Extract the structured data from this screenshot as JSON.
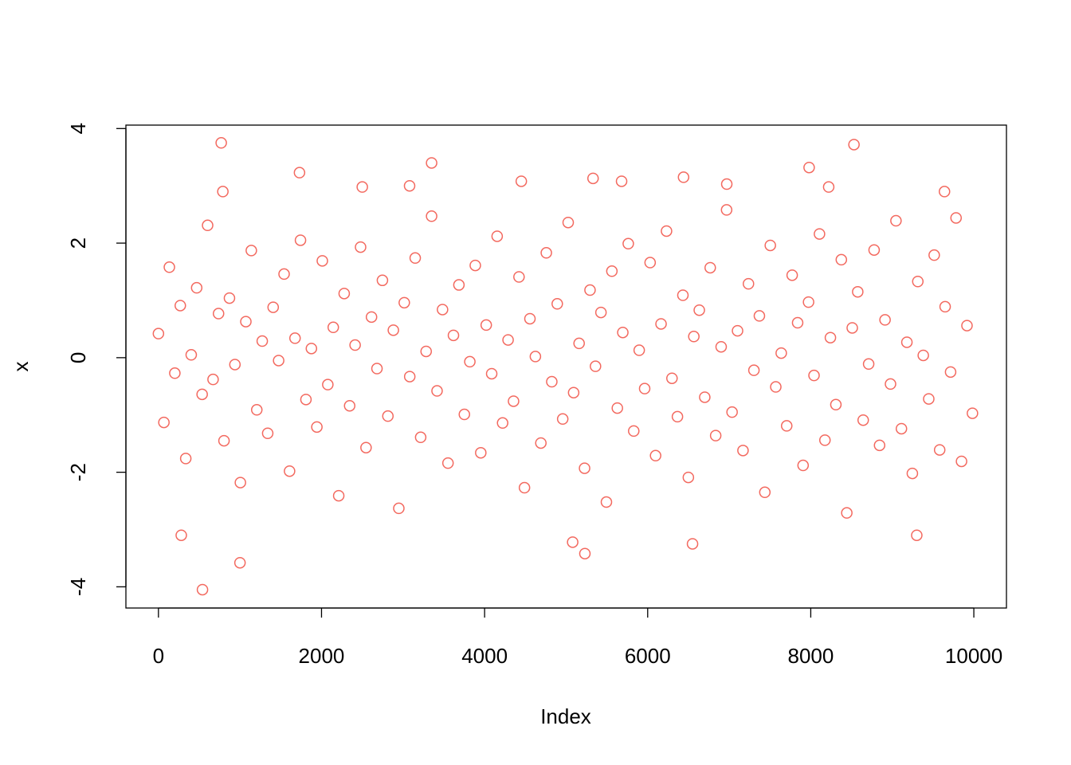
{
  "chart_data": {
    "type": "scatter",
    "xlabel": "Index",
    "ylabel": "x",
    "color": "#f3695f",
    "xlim": [
      -399,
      10400
    ],
    "ylim": [
      -4.37,
      4.06
    ],
    "xticks": [
      0,
      2000,
      4000,
      6000,
      8000,
      10000
    ],
    "yticks": [
      -4,
      -2,
      0,
      2,
      4
    ],
    "x": [
      0,
      67,
      134,
      201,
      268,
      335,
      402,
      469,
      536,
      603,
      670,
      737,
      804,
      871,
      938,
      1005,
      1072,
      1139,
      1206,
      1273,
      1340,
      1407,
      1474,
      1541,
      1608,
      1675,
      1742,
      1809,
      1876,
      1943,
      2010,
      2077,
      2144,
      2211,
      2278,
      2345,
      2412,
      2479,
      2546,
      2613,
      2680,
      2747,
      2814,
      2881,
      2948,
      3015,
      3082,
      3149,
      3216,
      3283,
      3350,
      3417,
      3484,
      3551,
      3618,
      3685,
      3752,
      3819,
      3886,
      3953,
      4020,
      4087,
      4154,
      4221,
      4288,
      4355,
      4422,
      4489,
      4556,
      4623,
      4690,
      4757,
      4824,
      4891,
      4958,
      5025,
      5092,
      5159,
      5226,
      5293,
      5360,
      5427,
      5494,
      5561,
      5628,
      5695,
      5762,
      5829,
      5896,
      5963,
      6030,
      6097,
      6164,
      6231,
      6298,
      6365,
      6432,
      6499,
      6566,
      6633,
      6700,
      6767,
      6834,
      6901,
      6968,
      7035,
      7102,
      7169,
      7236,
      7303,
      7370,
      7437,
      7504,
      7571,
      7638,
      7705,
      7772,
      7839,
      7906,
      7973,
      8040,
      8107,
      8174,
      8241,
      8308,
      8375,
      8442,
      8509,
      8576,
      8643,
      8710,
      8777,
      8844,
      8911,
      8978,
      9045,
      9112,
      9179,
      9246,
      9313,
      9380,
      9447,
      9514,
      9581,
      9648,
      9715,
      9782,
      9849,
      9916,
      9983,
      770,
      8530,
      540,
      1000,
      3350,
      5230,
      5080,
      280,
      9300,
      6550,
      7980,
      1730,
      6440,
      5330,
      5680,
      4450,
      6970,
      3080,
      2500,
      8220,
      9640,
      790
    ],
    "values": [
      0.42,
      -1.13,
      1.58,
      -0.27,
      0.91,
      -1.76,
      0.05,
      1.22,
      -0.64,
      2.31,
      -0.38,
      0.77,
      -1.45,
      1.04,
      -0.12,
      -2.18,
      0.63,
      1.87,
      -0.91,
      0.29,
      -1.32,
      0.88,
      -0.05,
      1.46,
      -1.98,
      0.34,
      2.05,
      -0.73,
      0.16,
      -1.21,
      1.69,
      -0.47,
      0.53,
      -2.41,
      1.12,
      -0.84,
      0.22,
      1.93,
      -1.57,
      0.71,
      -0.19,
      1.35,
      -1.02,
      0.48,
      -2.63,
      0.96,
      -0.33,
      1.74,
      -1.39,
      0.11,
      2.47,
      -0.58,
      0.84,
      -1.84,
      0.39,
      1.27,
      -0.99,
      -0.07,
      1.61,
      -1.66,
      0.57,
      -0.28,
      2.12,
      -1.14,
      0.31,
      -0.76,
      1.41,
      -2.27,
      0.68,
      0.02,
      -1.49,
      1.83,
      -0.42,
      0.94,
      -1.07,
      2.36,
      -0.61,
      0.25,
      -1.93,
      1.18,
      -0.15,
      0.79,
      -2.52,
      1.51,
      -0.88,
      0.44,
      1.99,
      -1.28,
      0.13,
      -0.54,
      1.66,
      -1.71,
      0.59,
      2.21,
      -0.36,
      -1.03,
      1.09,
      -2.09,
      0.37,
      0.83,
      -0.69,
      1.57,
      -1.36,
      0.19,
      2.58,
      -0.95,
      0.47,
      -1.62,
      1.29,
      -0.22,
      0.73,
      -2.35,
      1.96,
      -0.51,
      0.08,
      -1.19,
      1.44,
      0.61,
      -1.88,
      0.97,
      -0.31,
      2.16,
      -1.44,
      0.35,
      -0.82,
      1.71,
      -2.71,
      0.52,
      1.15,
      -1.09,
      -0.11,
      1.88,
      -1.53,
      0.66,
      -0.46,
      2.39,
      -1.24,
      0.27,
      -2.02,
      1.33,
      0.04,
      -0.72,
      1.79,
      -1.61,
      0.89,
      -0.25,
      2.44,
      -1.81,
      0.56,
      -0.97,
      3.75,
      3.72,
      -4.05,
      -3.58,
      3.4,
      -3.42,
      -3.22,
      -3.1,
      -3.1,
      -3.25,
      3.32,
      3.23,
      3.15,
      3.13,
      3.08,
      3.08,
      3.03,
      3.0,
      2.98,
      2.98,
      2.9,
      2.9
    ]
  }
}
